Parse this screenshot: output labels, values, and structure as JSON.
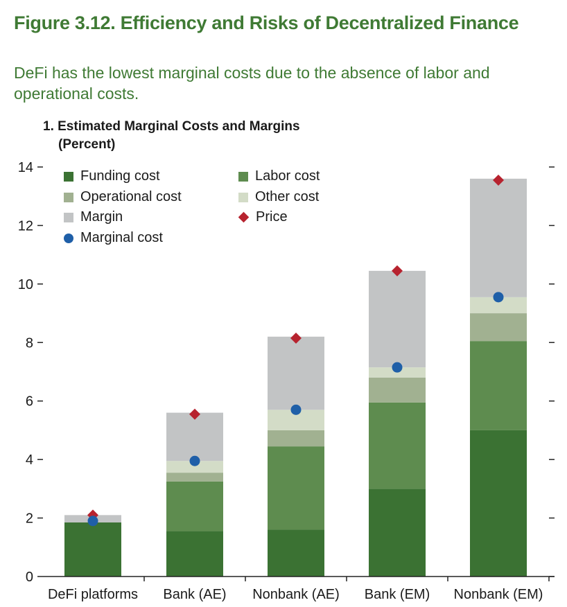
{
  "figure": {
    "title": "Figure 3.12. Efficiency and Risks of Decentralized Finance",
    "subtitle": "DeFi has the lowest marginal costs due to the absence of labor and operational costs."
  },
  "panel": {
    "title": "1. Estimated Marginal Costs and Margins",
    "unit": "(Percent)"
  },
  "legend": {
    "funding": "Funding cost",
    "labor": "Labor cost",
    "operational": "Operational cost",
    "other": "Other cost",
    "margin": "Margin",
    "price": "Price",
    "marginal": "Marginal cost"
  },
  "colors": {
    "funding": "#3b7233",
    "labor": "#5e8c4f",
    "operational": "#a1b191",
    "other": "#d3dcc7",
    "margin": "#c2c4c5",
    "price": "#b7232f",
    "marginal": "#1f5fa8",
    "title": "#3f7a34"
  },
  "chart_data": {
    "type": "bar",
    "stacked": true,
    "categories": [
      "DeFi platforms",
      "Bank (AE)",
      "Nonbank (AE)",
      "Bank (EM)",
      "Nonbank (EM)"
    ],
    "series": [
      {
        "key": "funding",
        "name": "Funding cost",
        "values": [
          1.85,
          1.55,
          1.6,
          3.0,
          5.0
        ]
      },
      {
        "key": "labor",
        "name": "Labor cost",
        "values": [
          0,
          1.7,
          2.85,
          2.95,
          3.05
        ]
      },
      {
        "key": "operational",
        "name": "Operational cost",
        "values": [
          0,
          0.3,
          0.55,
          0.85,
          0.95
        ]
      },
      {
        "key": "other",
        "name": "Other cost",
        "values": [
          0,
          0.4,
          0.7,
          0.35,
          0.55
        ]
      },
      {
        "key": "margin",
        "name": "Margin",
        "values": [
          0.25,
          1.65,
          2.5,
          3.3,
          4.05
        ]
      }
    ],
    "markers": [
      {
        "key": "price",
        "name": "Price",
        "shape": "diamond",
        "values": [
          2.1,
          5.55,
          8.15,
          10.45,
          13.55
        ]
      },
      {
        "key": "marginal",
        "name": "Marginal cost",
        "shape": "circle",
        "values": [
          1.9,
          3.95,
          5.7,
          7.15,
          9.55
        ]
      }
    ],
    "ylim": [
      0,
      14
    ],
    "yticks": [
      0,
      2,
      4,
      6,
      8,
      10,
      12,
      14
    ],
    "grid": false
  }
}
